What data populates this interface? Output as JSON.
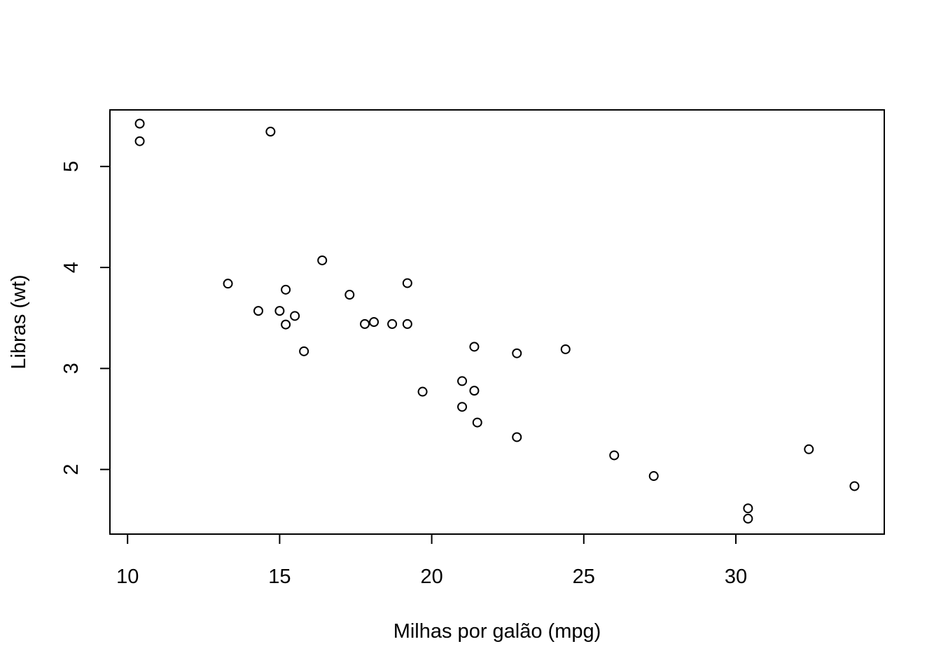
{
  "chart_data": {
    "type": "scatter",
    "title": "",
    "xlabel": "Milhas por galão (mpg)",
    "ylabel": "Libras (wt)",
    "xlim": [
      9.42,
      34.88
    ],
    "ylim": [
      1.36,
      5.56
    ],
    "xticks": [
      10,
      15,
      20,
      25,
      30
    ],
    "yticks": [
      2,
      3,
      4,
      5
    ],
    "grid": false,
    "legend": "none",
    "series": [
      {
        "points": [
          [
            21.0,
            2.62
          ],
          [
            21.0,
            2.875
          ],
          [
            22.8,
            2.32
          ],
          [
            21.4,
            3.215
          ],
          [
            18.7,
            3.44
          ],
          [
            18.1,
            3.46
          ],
          [
            14.3,
            3.57
          ],
          [
            24.4,
            3.19
          ],
          [
            22.8,
            3.15
          ],
          [
            19.2,
            3.44
          ],
          [
            17.8,
            3.44
          ],
          [
            16.4,
            4.07
          ],
          [
            17.3,
            3.73
          ],
          [
            15.2,
            3.78
          ],
          [
            10.4,
            5.25
          ],
          [
            10.4,
            5.424
          ],
          [
            14.7,
            5.345
          ],
          [
            32.4,
            2.2
          ],
          [
            30.4,
            1.615
          ],
          [
            33.9,
            1.835
          ],
          [
            21.5,
            2.465
          ],
          [
            15.5,
            3.52
          ],
          [
            15.2,
            3.435
          ],
          [
            13.3,
            3.84
          ],
          [
            19.2,
            3.845
          ],
          [
            27.3,
            1.935
          ],
          [
            26.0,
            2.14
          ],
          [
            30.4,
            1.513
          ],
          [
            15.8,
            3.17
          ],
          [
            19.7,
            2.77
          ],
          [
            15.0,
            3.57
          ],
          [
            21.4,
            2.78
          ]
        ]
      }
    ]
  }
}
